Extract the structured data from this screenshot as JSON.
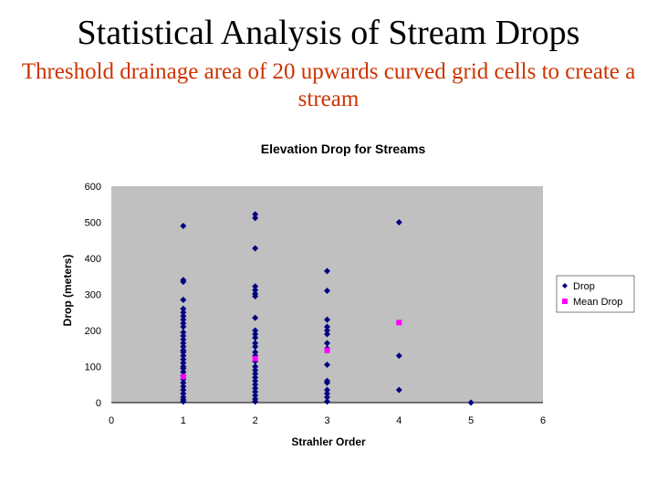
{
  "slide": {
    "title": "Statistical Analysis of Stream Drops",
    "subtitle": "Threshold drainage area of 20 upwards curved grid cells to create a stream"
  },
  "colors": {
    "plot_background": "#c0c0c0",
    "drop_marker": "#000080",
    "mean_marker": "#ff00ff",
    "subtitle": "#cc3300"
  },
  "chart_data": {
    "type": "scatter",
    "title": "Elevation Drop for Streams",
    "xlabel": "Strahler Order",
    "ylabel": "Drop (meters)",
    "xlim": [
      0,
      6
    ],
    "ylim": [
      0,
      600
    ],
    "xticks": [
      0,
      1,
      2,
      3,
      4,
      5,
      6
    ],
    "yticks": [
      0,
      100,
      200,
      300,
      400,
      500,
      600
    ],
    "grid": false,
    "legend_position": "right",
    "series": [
      {
        "name": "Drop",
        "marker": "diamond",
        "color": "#000080",
        "points": [
          [
            1,
            490
          ],
          [
            1,
            340
          ],
          [
            1,
            335
          ],
          [
            1,
            285
          ],
          [
            1,
            260
          ],
          [
            1,
            250
          ],
          [
            1,
            240
          ],
          [
            1,
            230
          ],
          [
            1,
            220
          ],
          [
            1,
            210
          ],
          [
            1,
            195
          ],
          [
            1,
            185
          ],
          [
            1,
            175
          ],
          [
            1,
            165
          ],
          [
            1,
            155
          ],
          [
            1,
            145
          ],
          [
            1,
            140
          ],
          [
            1,
            130
          ],
          [
            1,
            120
          ],
          [
            1,
            110
          ],
          [
            1,
            100
          ],
          [
            1,
            95
          ],
          [
            1,
            85
          ],
          [
            1,
            75
          ],
          [
            1,
            65
          ],
          [
            1,
            55
          ],
          [
            1,
            45
          ],
          [
            1,
            35
          ],
          [
            1,
            25
          ],
          [
            1,
            15
          ],
          [
            1,
            8
          ],
          [
            1,
            3
          ],
          [
            2,
            522
          ],
          [
            2,
            512
          ],
          [
            2,
            428
          ],
          [
            2,
            322
          ],
          [
            2,
            312
          ],
          [
            2,
            302
          ],
          [
            2,
            295
          ],
          [
            2,
            235
          ],
          [
            2,
            200
          ],
          [
            2,
            190
          ],
          [
            2,
            180
          ],
          [
            2,
            165
          ],
          [
            2,
            155
          ],
          [
            2,
            140
          ],
          [
            2,
            130
          ],
          [
            2,
            115
          ],
          [
            2,
            100
          ],
          [
            2,
            90
          ],
          [
            2,
            80
          ],
          [
            2,
            70
          ],
          [
            2,
            60
          ],
          [
            2,
            50
          ],
          [
            2,
            40
          ],
          [
            2,
            30
          ],
          [
            2,
            20
          ],
          [
            2,
            10
          ],
          [
            2,
            3
          ],
          [
            3,
            365
          ],
          [
            3,
            310
          ],
          [
            3,
            230
          ],
          [
            3,
            210
          ],
          [
            3,
            200
          ],
          [
            3,
            190
          ],
          [
            3,
            165
          ],
          [
            3,
            150
          ],
          [
            3,
            105
          ],
          [
            3,
            60
          ],
          [
            3,
            55
          ],
          [
            3,
            35
          ],
          [
            3,
            25
          ],
          [
            3,
            15
          ],
          [
            3,
            3
          ],
          [
            4,
            500
          ],
          [
            4,
            130
          ],
          [
            4,
            35
          ],
          [
            5,
            0
          ]
        ]
      },
      {
        "name": "Mean Drop",
        "marker": "square",
        "color": "#ff00ff",
        "points": [
          [
            1,
            72
          ],
          [
            2,
            122
          ],
          [
            3,
            145
          ],
          [
            4,
            222
          ]
        ]
      }
    ]
  }
}
